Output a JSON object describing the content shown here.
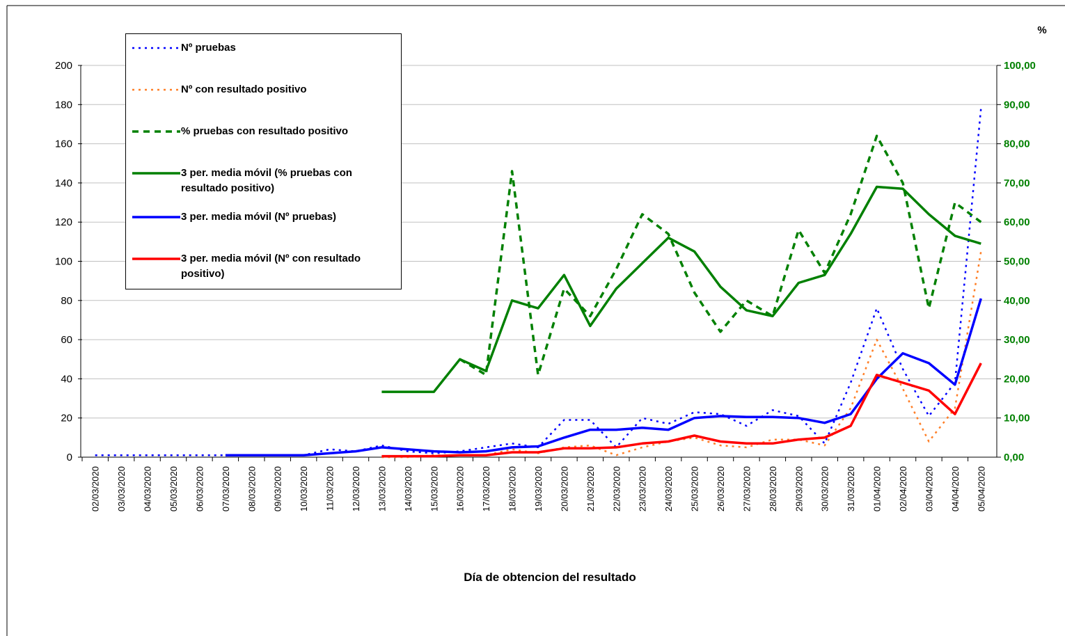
{
  "chart_data": {
    "type": "line",
    "x_label": "Día de obtencion del resultado",
    "y2_label": "%",
    "categories": [
      "02/03/2020",
      "03/03/2020",
      "04/03/2020",
      "05/03/2020",
      "06/03/2020",
      "07/03/2020",
      "08/03/2020",
      "09/03/2020",
      "10/03/2020",
      "11/03/2020",
      "12/03/2020",
      "13/03/2020",
      "14/03/2020",
      "15/03/2020",
      "16/03/2020",
      "17/03/2020",
      "18/03/2020",
      "19/03/2020",
      "20/03/2020",
      "21/03/2020",
      "22/03/2020",
      "23/03/2020",
      "24/03/2020",
      "25/03/2020",
      "26/03/2020",
      "27/03/2020",
      "28/03/2020",
      "29/03/2020",
      "30/03/2020",
      "31/03/2020",
      "01/04/2020",
      "02/04/2020",
      "03/04/2020",
      "04/04/2020",
      "05/04/2020"
    ],
    "ylim": [
      0,
      200
    ],
    "yticks": [
      0,
      20,
      40,
      60,
      80,
      100,
      120,
      140,
      160,
      180,
      200
    ],
    "y2lim": [
      0,
      100
    ],
    "y2ticks": [
      {
        "value": 0,
        "label": "0,00"
      },
      {
        "value": 10,
        "label": "10,00"
      },
      {
        "value": 20,
        "label": "20,00"
      },
      {
        "value": 30,
        "label": "30,00"
      },
      {
        "value": 40,
        "label": "40,00"
      },
      {
        "value": 50,
        "label": "50,00"
      },
      {
        "value": 60,
        "label": "60,00"
      },
      {
        "value": 70,
        "label": "70,00"
      },
      {
        "value": 80,
        "label": "80,00"
      },
      {
        "value": 90,
        "label": "90,00"
      },
      {
        "value": 100,
        "label": "100,00"
      }
    ],
    "grid": true,
    "series": [
      {
        "name": "Nº pruebas",
        "color": "#0000ff",
        "line_style": "dotted",
        "values": [
          1,
          1,
          1,
          1,
          1,
          1,
          1,
          1,
          1,
          4,
          3,
          6,
          3,
          2,
          3,
          5,
          7,
          5,
          19,
          19,
          5,
          20,
          17,
          23,
          22,
          16,
          24,
          21,
          7,
          38,
          76,
          45,
          21,
          38,
          178
        ]
      },
      {
        "name": "Nº con resultado positivo",
        "color": "#ff7f27",
        "line_style": "dotted",
        "values": [
          null,
          null,
          null,
          null,
          null,
          null,
          null,
          null,
          null,
          null,
          null,
          0,
          0,
          1,
          1,
          1,
          4,
          2,
          5,
          6,
          1,
          5,
          8,
          10,
          6,
          5,
          9,
          9,
          6,
          25,
          60,
          35,
          8,
          25,
          105
        ]
      },
      {
        "name": "% pruebas con resultado positivo",
        "color": "#008000",
        "line_style": "dashed",
        "axis": "y2",
        "values": [
          null,
          null,
          null,
          null,
          null,
          null,
          null,
          null,
          null,
          null,
          null,
          null,
          null,
          null,
          25,
          21,
          73,
          21,
          43,
          36,
          48,
          62,
          57,
          42,
          32,
          40,
          36,
          58,
          47,
          62,
          82,
          70,
          38,
          65,
          60
        ]
      },
      {
        "name": "3 per. media móvil (% pruebas con resultado positivo)",
        "color": "#008000",
        "line_style": "solid",
        "axis": "y2",
        "values": [
          null,
          null,
          null,
          null,
          null,
          null,
          null,
          null,
          null,
          null,
          null,
          16.67,
          16.67,
          16.67,
          25,
          22,
          40,
          38,
          46.5,
          33.5,
          43,
          49.5,
          56,
          52.5,
          43.5,
          37.5,
          36,
          44.5,
          46.5,
          57,
          69,
          68.5,
          62,
          56.5,
          54.5
        ]
      },
      {
        "name": "3 per. media móvil (Nº pruebas)",
        "color": "#0000ff",
        "line_style": "solid",
        "values": [
          null,
          null,
          null,
          null,
          null,
          1,
          1,
          1,
          1,
          2,
          3,
          5,
          4,
          3,
          2.5,
          3,
          5,
          5.5,
          10,
          14,
          14,
          15,
          14,
          20,
          21,
          20.5,
          20.5,
          20,
          17.5,
          22,
          40,
          53,
          48,
          37,
          81
        ]
      },
      {
        "name": "3 per. media móvil (Nº con resultado positivo)",
        "color": "#ff0000",
        "line_style": "solid",
        "values": [
          null,
          null,
          null,
          null,
          null,
          null,
          null,
          null,
          null,
          null,
          null,
          0.5,
          0.5,
          0.5,
          1,
          1,
          2.5,
          2.5,
          4.5,
          4.5,
          5,
          7,
          8,
          11,
          8,
          7,
          7,
          9,
          10,
          16,
          42,
          38,
          34,
          22,
          48
        ]
      }
    ]
  }
}
